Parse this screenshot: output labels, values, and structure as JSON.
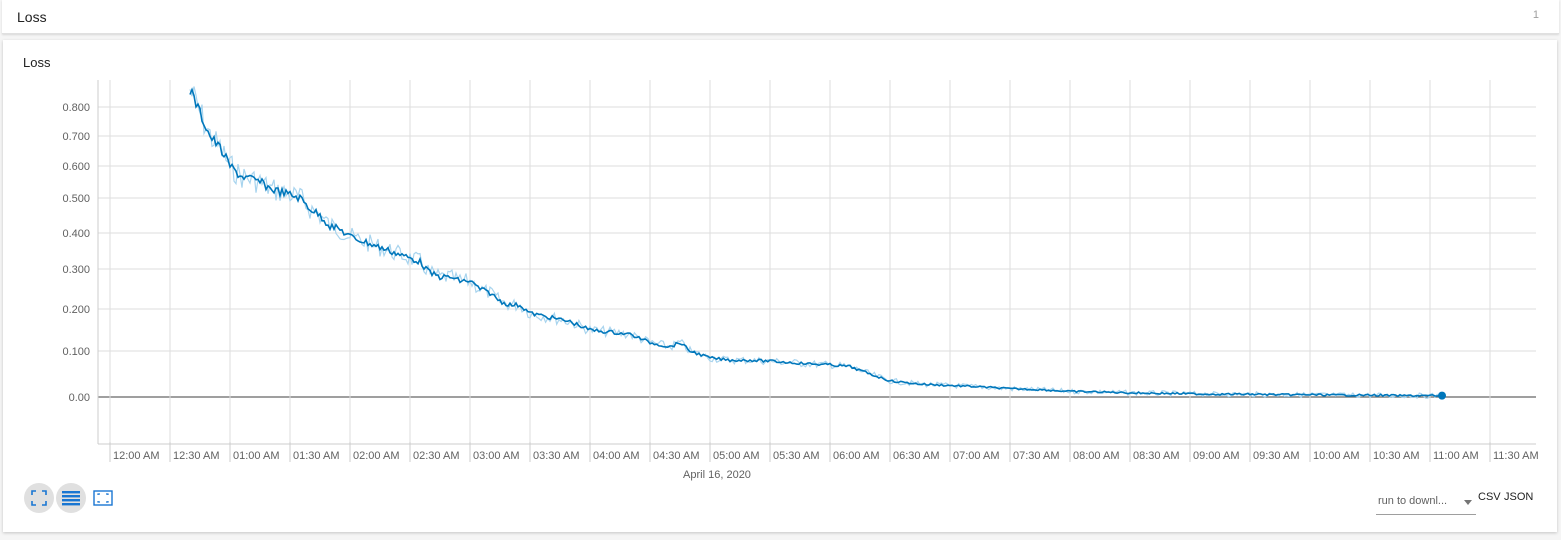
{
  "group": {
    "title": "Loss",
    "count": "1"
  },
  "card": {
    "title": "Loss"
  },
  "controls": {
    "run_select": "run to downl...",
    "csv": "CSV",
    "json": "JSON"
  },
  "colors": {
    "line": "#0077bb",
    "line_raw": "#a8d4ee",
    "grid": "#dddddd",
    "axis": "#666666"
  },
  "icons": [
    "fullscreen-icon",
    "toggle-y-log-icon",
    "fit-domain-icon"
  ],
  "chart_data": {
    "type": "line",
    "title": "Loss",
    "date_label": "April 16, 2020",
    "x_ticks": [
      "12:00 AM",
      "12:30 AM",
      "01:00 AM",
      "01:30 AM",
      "02:00 AM",
      "02:30 AM",
      "03:00 AM",
      "03:30 AM",
      "04:00 AM",
      "04:30 AM",
      "05:00 AM",
      "05:30 AM",
      "06:00 AM",
      "06:30 AM",
      "07:00 AM",
      "07:30 AM",
      "08:00 AM",
      "08:30 AM",
      "09:00 AM",
      "09:30 AM",
      "10:00 AM",
      "10:30 AM",
      "11:00 AM",
      "11:30 AM"
    ],
    "y_ticks": [
      "0.800",
      "0.700",
      "0.600",
      "0.500",
      "0.400",
      "0.300",
      "0.200",
      "0.100",
      "0.00"
    ],
    "y_tick_values": [
      0.8,
      0.7,
      0.6,
      0.5,
      0.4,
      0.3,
      0.2,
      0.1,
      0.0
    ],
    "x_range": [
      "11:54 PM",
      "11:55 AM"
    ],
    "y_scale": "log-style",
    "grid": true,
    "series": [
      {
        "x": [
          "12:40 AM",
          "12:45 AM",
          "12:50 AM",
          "12:55 AM",
          "01:00 AM",
          "01:05 AM",
          "01:10 AM",
          "01:15 AM",
          "01:20 AM",
          "01:25 AM",
          "01:30 AM",
          "01:35 AM",
          "01:40 AM",
          "01:45 AM",
          "01:50 AM",
          "01:55 AM",
          "02:00 AM",
          "02:05 AM",
          "02:10 AM",
          "02:15 AM",
          "02:20 AM",
          "02:25 AM",
          "02:30 AM",
          "02:35 AM",
          "02:40 AM",
          "02:45 AM",
          "02:50 AM",
          "02:55 AM",
          "03:00 AM",
          "03:05 AM",
          "03:10 AM",
          "03:15 AM",
          "03:20 AM",
          "03:25 AM",
          "03:30 AM",
          "03:40 AM",
          "03:50 AM",
          "04:00 AM",
          "04:10 AM",
          "04:20 AM",
          "04:30 AM",
          "04:40 AM",
          "04:45 AM",
          "04:50 AM",
          "05:00 AM",
          "05:10 AM",
          "05:20 AM",
          "05:30 AM",
          "05:40 AM",
          "05:50 AM",
          "06:00 AM",
          "06:05 AM",
          "06:10 AM",
          "06:20 AM",
          "06:30 AM",
          "06:45 AM",
          "07:00 AM",
          "07:15 AM",
          "07:30 AM",
          "07:45 AM",
          "08:00 AM",
          "08:15 AM",
          "08:30 AM",
          "08:45 AM",
          "09:00 AM",
          "09:15 AM",
          "09:30 AM",
          "09:45 AM",
          "10:00 AM",
          "10:15 AM",
          "10:30 AM",
          "10:45 AM",
          "11:00 AM",
          "11:06 AM"
        ],
        "y": [
          0.86,
          0.78,
          0.7,
          0.66,
          0.6,
          0.57,
          0.56,
          0.55,
          0.53,
          0.52,
          0.51,
          0.5,
          0.47,
          0.45,
          0.42,
          0.41,
          0.39,
          0.38,
          0.37,
          0.36,
          0.35,
          0.34,
          0.33,
          0.32,
          0.29,
          0.28,
          0.28,
          0.27,
          0.27,
          0.25,
          0.24,
          0.22,
          0.21,
          0.21,
          0.19,
          0.18,
          0.17,
          0.15,
          0.145,
          0.14,
          0.12,
          0.11,
          0.12,
          0.1,
          0.085,
          0.08,
          0.08,
          0.078,
          0.075,
          0.072,
          0.07,
          0.068,
          0.066,
          0.05,
          0.035,
          0.028,
          0.025,
          0.022,
          0.018,
          0.016,
          0.012,
          0.011,
          0.009,
          0.008,
          0.007,
          0.006,
          0.006,
          0.005,
          0.005,
          0.004,
          0.004,
          0.003,
          0.003,
          0.003
        ]
      }
    ]
  }
}
